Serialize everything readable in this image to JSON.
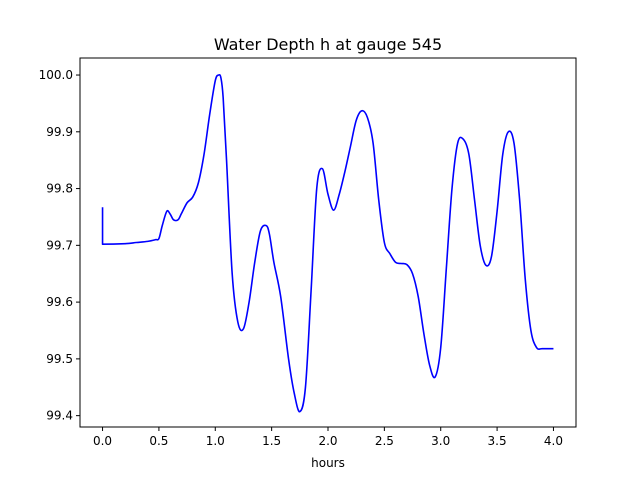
{
  "chart_data": {
    "type": "line",
    "title": "Water Depth h at gauge 545",
    "xlabel": "hours",
    "ylabel": "",
    "xlim": [
      -0.2,
      4.2
    ],
    "ylim": [
      99.38,
      100.03
    ],
    "xticks": [
      0.0,
      0.5,
      1.0,
      1.5,
      2.0,
      2.5,
      3.0,
      3.5,
      4.0
    ],
    "xtick_labels": [
      "0.0",
      "0.5",
      "1.0",
      "1.5",
      "2.0",
      "2.5",
      "3.0",
      "3.5",
      "4.0"
    ],
    "yticks": [
      99.4,
      99.5,
      99.6,
      99.7,
      99.8,
      99.9,
      100.0
    ],
    "ytick_labels": [
      "99.4",
      "99.5",
      "99.6",
      "99.7",
      "99.8",
      "99.9",
      "100.0"
    ],
    "grid": false,
    "series": [
      {
        "color": "#0000ff",
        "x": [
          0.0,
          0.0,
          0.0,
          0.2,
          0.3,
          0.4,
          0.47,
          0.5,
          0.53,
          0.57,
          0.6,
          0.63,
          0.67,
          0.7,
          0.75,
          0.8,
          0.85,
          0.9,
          0.95,
          1.0,
          1.03,
          1.05,
          1.07,
          1.1,
          1.15,
          1.2,
          1.25,
          1.3,
          1.35,
          1.4,
          1.45,
          1.48,
          1.52,
          1.58,
          1.65,
          1.7,
          1.75,
          1.8,
          1.85,
          1.9,
          1.95,
          2.0,
          2.05,
          2.1,
          2.15,
          2.2,
          2.25,
          2.3,
          2.35,
          2.4,
          2.45,
          2.5,
          2.55,
          2.6,
          2.65,
          2.7,
          2.75,
          2.8,
          2.85,
          2.9,
          2.95,
          3.0,
          3.05,
          3.1,
          3.15,
          3.2,
          3.25,
          3.3,
          3.35,
          3.4,
          3.45,
          3.5,
          3.55,
          3.6,
          3.65,
          3.7,
          3.75,
          3.8,
          3.85,
          3.9,
          3.95,
          4.0
        ],
        "y": [
          99.767,
          99.703,
          99.702,
          99.703,
          99.705,
          99.707,
          99.71,
          99.712,
          99.735,
          99.76,
          99.755,
          99.745,
          99.745,
          99.756,
          99.775,
          99.785,
          99.81,
          99.86,
          99.93,
          99.99,
          100.0,
          99.995,
          99.96,
          99.85,
          99.65,
          99.565,
          99.553,
          99.6,
          99.67,
          99.725,
          99.735,
          99.72,
          99.67,
          99.61,
          99.5,
          99.44,
          99.407,
          99.45,
          99.62,
          99.8,
          99.835,
          99.79,
          99.762,
          99.79,
          99.83,
          99.875,
          99.92,
          99.937,
          99.925,
          99.88,
          99.78,
          99.705,
          99.685,
          99.67,
          99.668,
          99.666,
          99.65,
          99.61,
          99.545,
          99.49,
          99.468,
          99.52,
          99.66,
          99.8,
          99.88,
          99.887,
          99.86,
          99.78,
          99.7,
          99.665,
          99.68,
          99.76,
          99.86,
          99.9,
          99.88,
          99.78,
          99.64,
          99.55,
          99.52,
          99.518,
          99.518,
          99.518
        ]
      }
    ]
  }
}
